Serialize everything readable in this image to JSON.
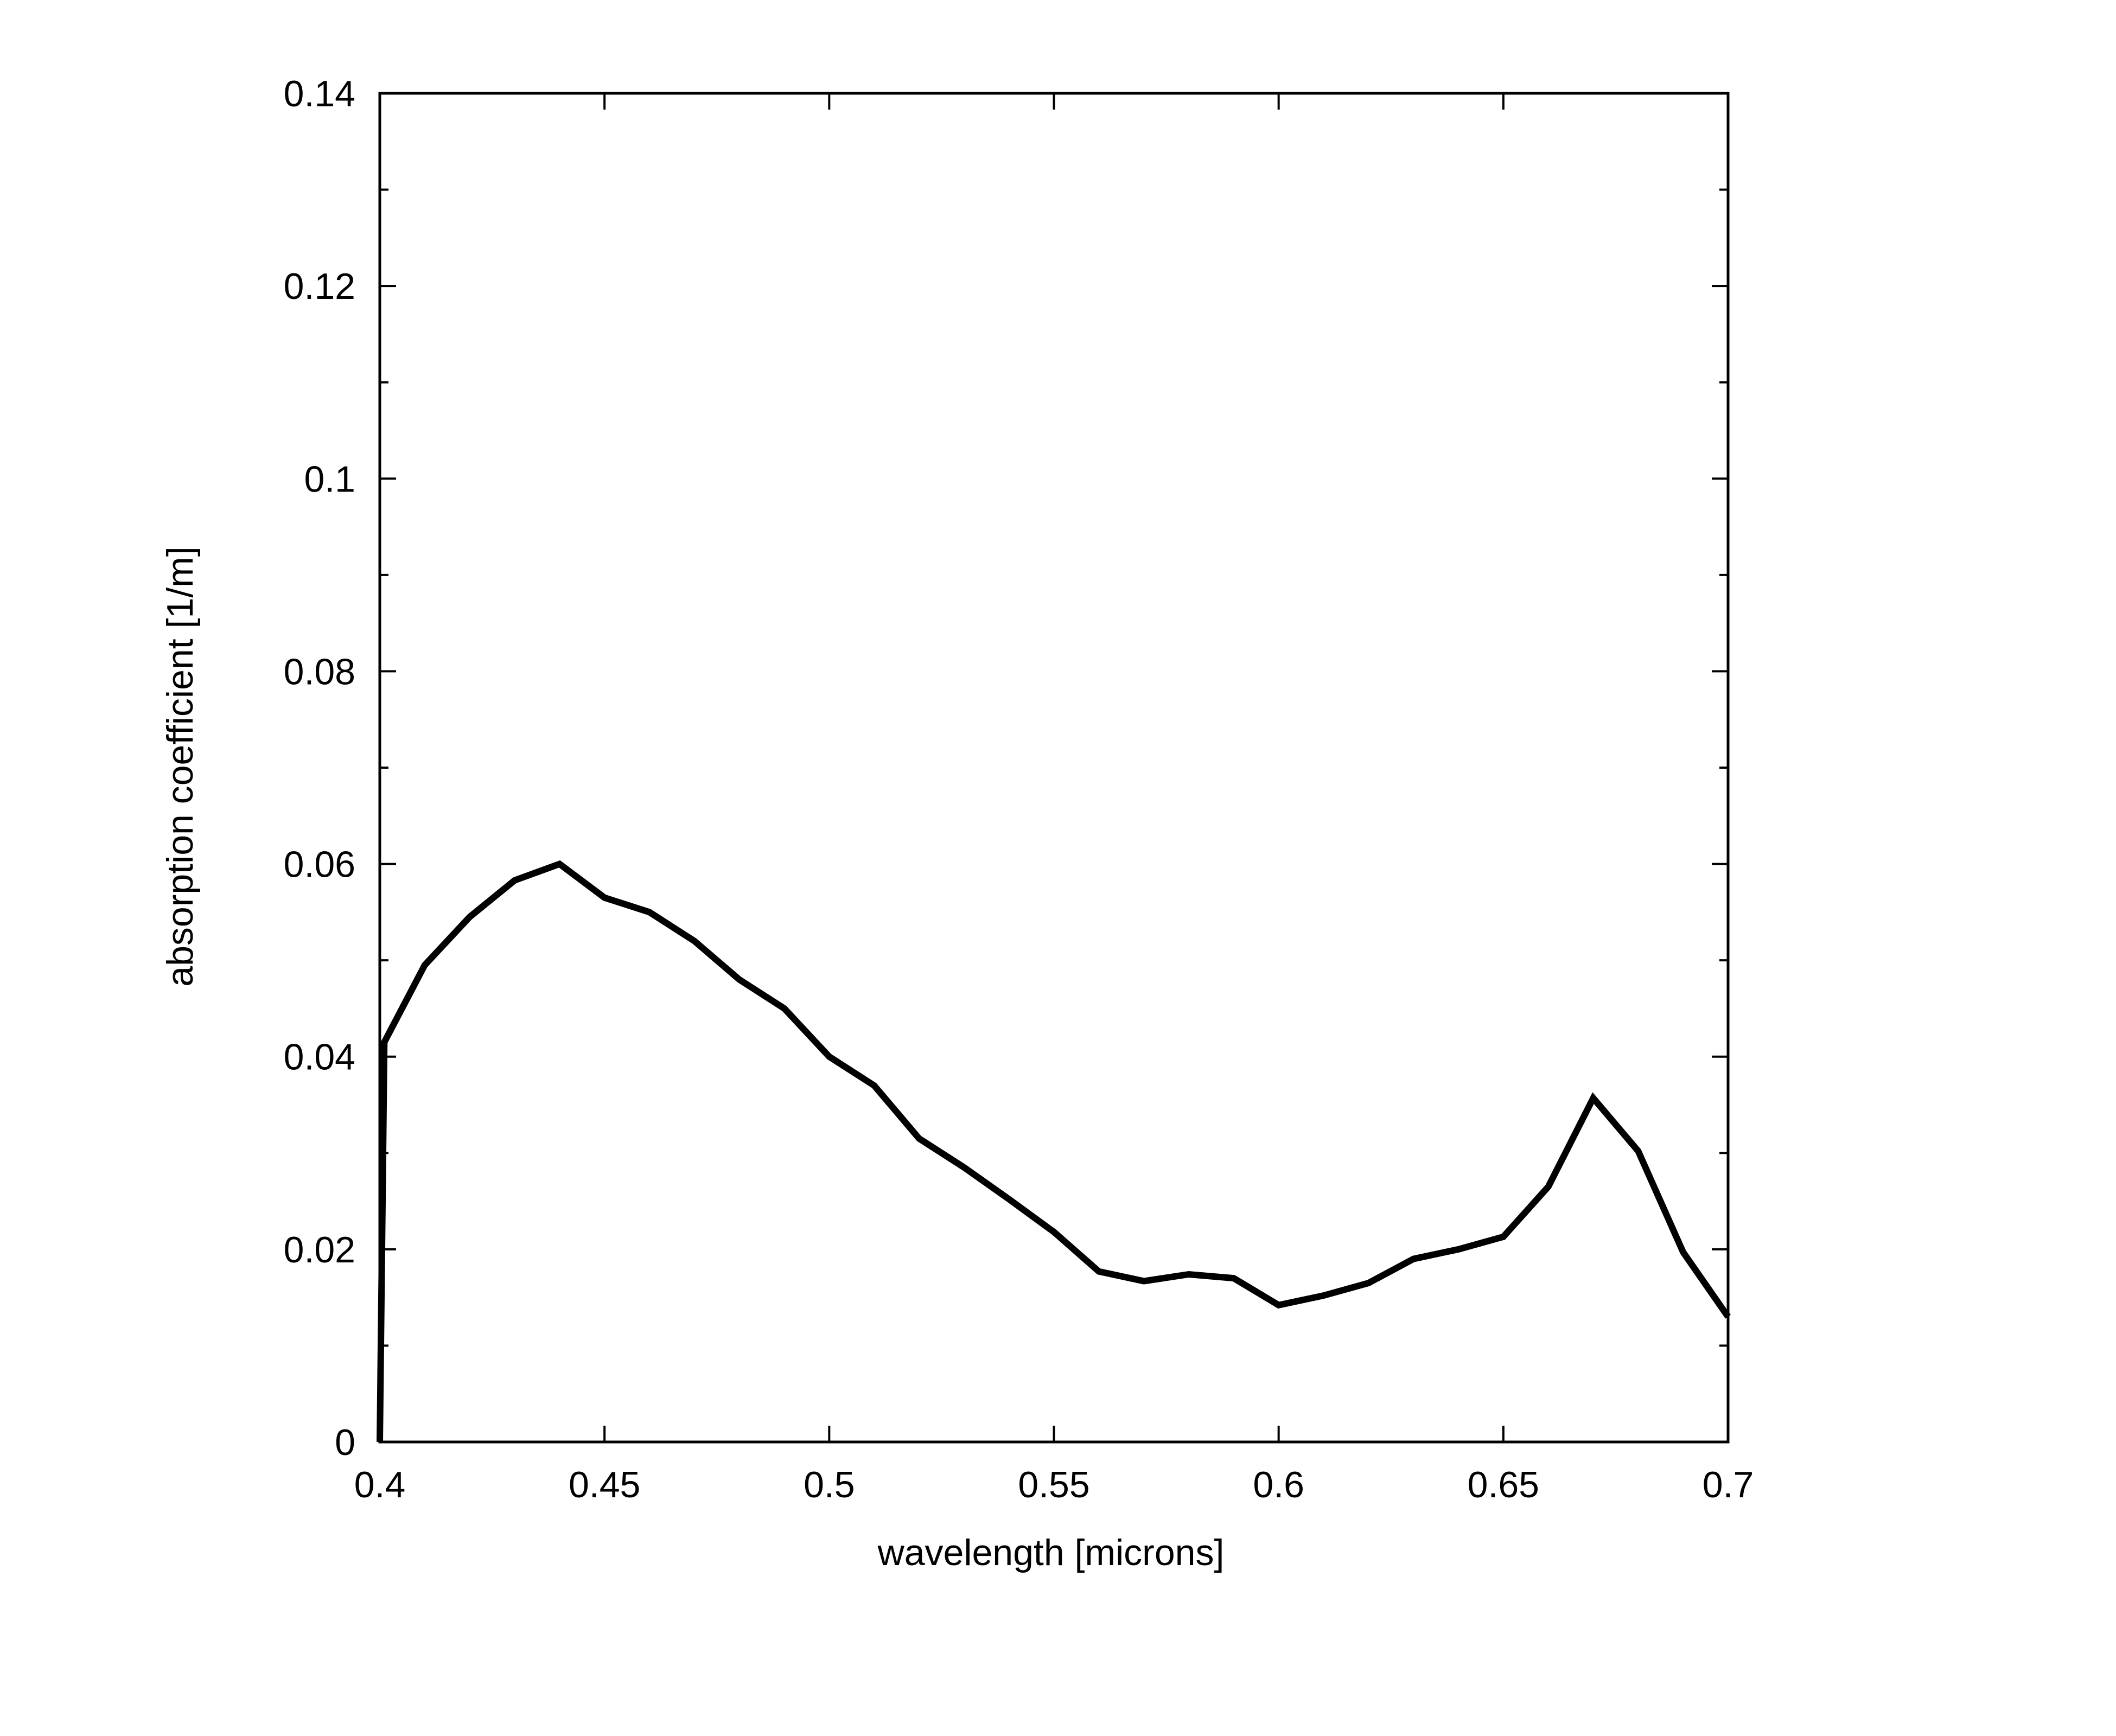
{
  "chart_data": {
    "type": "line",
    "title": "",
    "xlabel": "wavelength [microns]",
    "ylabel": "absorption coefficient [1/m]",
    "xlim": [
      0.4,
      0.7
    ],
    "ylim": [
      0,
      0.14
    ],
    "x_ticks": [
      "0.4",
      "0.45",
      "0.5",
      "0.55",
      "0.6",
      "0.65",
      "0.7"
    ],
    "y_ticks": [
      "0",
      "0.02",
      "0.04",
      "0.06",
      "0.08",
      "0.1",
      "0.12",
      "0.14"
    ],
    "x_tick_values": [
      0.4,
      0.45,
      0.5,
      0.55,
      0.6,
      0.65,
      0.7
    ],
    "y_tick_values": [
      0,
      0.02,
      0.04,
      0.06,
      0.08,
      0.1,
      0.12,
      0.14
    ],
    "y_minor_tick_values": [
      0.01,
      0.03,
      0.05,
      0.07,
      0.09,
      0.11,
      0.13
    ],
    "grid": false,
    "line_color": "#000000",
    "series": [
      {
        "x": [
          0.4,
          0.401,
          0.41,
          0.42,
          0.43,
          0.44,
          0.45,
          0.46,
          0.47,
          0.48,
          0.49,
          0.5,
          0.51,
          0.52,
          0.53,
          0.54,
          0.55,
          0.56,
          0.57,
          0.58,
          0.59,
          0.6,
          0.61,
          0.62,
          0.63,
          0.64,
          0.65,
          0.66,
          0.67,
          0.68,
          0.69,
          0.7
        ],
        "y": [
          0,
          0.0415,
          0.0495,
          0.0545,
          0.0583,
          0.06,
          0.0565,
          0.055,
          0.052,
          0.048,
          0.045,
          0.04,
          0.037,
          0.0315,
          0.0285,
          0.0252,
          0.0218,
          0.0177,
          0.0167,
          0.0174,
          0.017,
          0.0142,
          0.0152,
          0.0165,
          0.019,
          0.02,
          0.0213,
          0.0265,
          0.0357,
          0.0302,
          0.0197,
          0.013
        ]
      }
    ]
  }
}
